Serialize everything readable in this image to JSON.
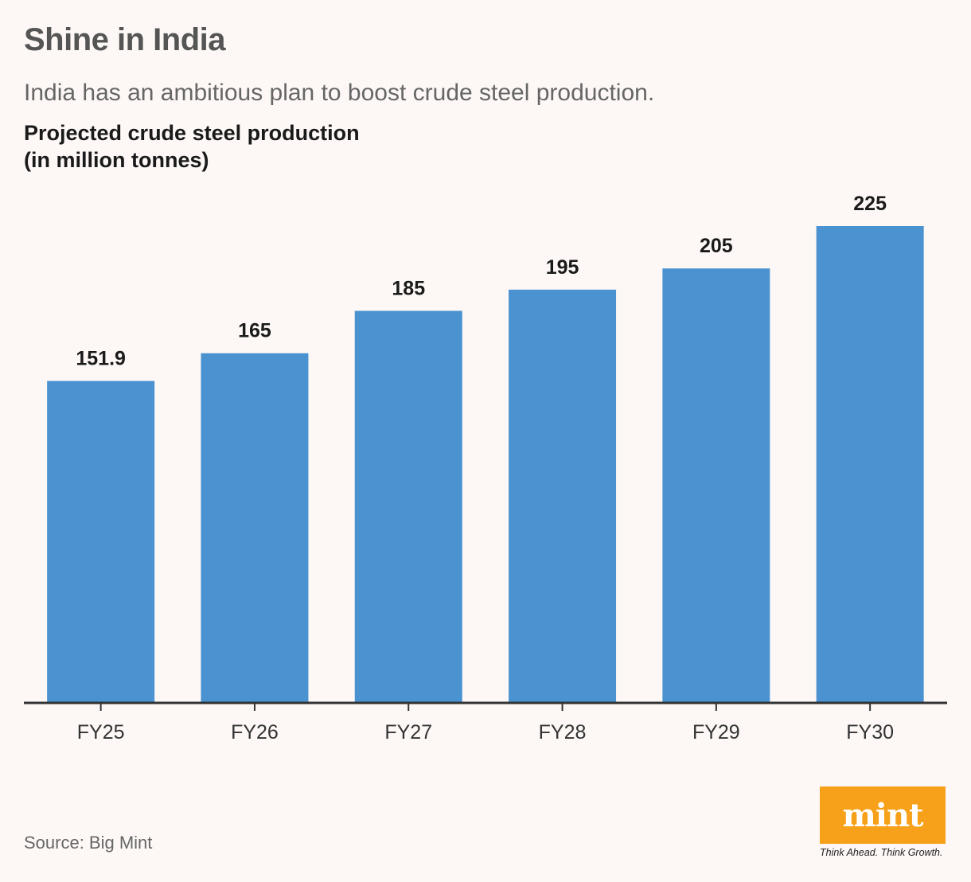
{
  "header": {
    "title": "Shine in India",
    "subtitle": "India has an ambitious plan to boost crude steel production.",
    "chart_title_line1": "Projected crude steel production",
    "chart_title_line2": "(in million tonnes)"
  },
  "footer": {
    "source": "Source: Big Mint",
    "logo_text": "mint",
    "logo_tagline": "Think Ahead. Think Growth."
  },
  "colors": {
    "bar": "#4a92d0",
    "axis": "#333333",
    "logo": "#f7a11a"
  },
  "chart_data": {
    "type": "bar",
    "title": "Projected crude steel production (in million tonnes)",
    "categories": [
      "FY25",
      "FY26",
      "FY27",
      "FY28",
      "FY29",
      "FY30"
    ],
    "values": [
      151.9,
      165,
      185,
      195,
      205,
      225
    ],
    "value_labels": [
      "151.9",
      "165",
      "185",
      "195",
      "205",
      "225"
    ],
    "ylim": [
      0,
      225
    ],
    "grid": false,
    "legend": "none"
  }
}
